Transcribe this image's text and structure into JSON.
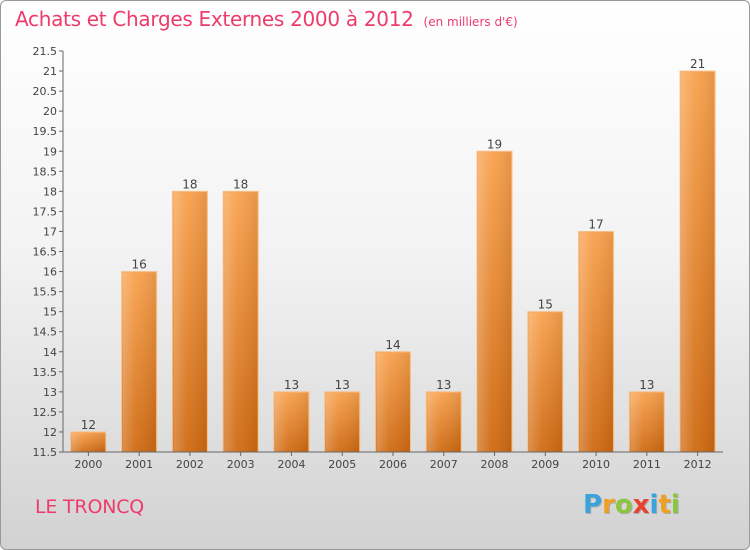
{
  "chart_data": {
    "type": "bar",
    "title": "Achats et Charges Externes 2000 à 2012",
    "unit_note": "(en milliers d'€)",
    "categories": [
      "2000",
      "2001",
      "2002",
      "2003",
      "2004",
      "2005",
      "2006",
      "2007",
      "2008",
      "2009",
      "2010",
      "2011",
      "2012"
    ],
    "values": [
      12,
      16,
      18,
      18,
      13,
      13,
      14,
      13,
      19,
      15,
      17,
      13,
      21
    ],
    "data_labels": [
      "12",
      "16",
      "18",
      "18",
      "13",
      "13",
      "14",
      "13",
      "19",
      "15",
      "17",
      "13",
      "21"
    ],
    "ylim": [
      11.5,
      21.5
    ],
    "yticks": [
      "11.5",
      "12",
      "12.5",
      "13",
      "13.5",
      "14",
      "14.5",
      "15",
      "15.5",
      "16",
      "16.5",
      "17",
      "17.5",
      "18",
      "18.5",
      "19",
      "19.5",
      "20",
      "20.5",
      "21",
      "21.5"
    ],
    "grid": false,
    "bar_color": "#f08a35"
  },
  "footer": {
    "commune": "LE TRONCQ",
    "brand": "Proxiti",
    "brand_letters": [
      {
        "char": "P",
        "color": "#3aa3dc"
      },
      {
        "char": "r",
        "color": "#f0a020"
      },
      {
        "char": "o",
        "color": "#8cc63e"
      },
      {
        "char": "x",
        "color": "#e8412f"
      },
      {
        "char": "i",
        "color": "#3aa3dc"
      },
      {
        "char": "t",
        "color": "#f0a020"
      },
      {
        "char": "i",
        "color": "#8cc63e"
      }
    ]
  },
  "colors": {
    "title": "#ee3b6a",
    "axis": "#555555"
  }
}
